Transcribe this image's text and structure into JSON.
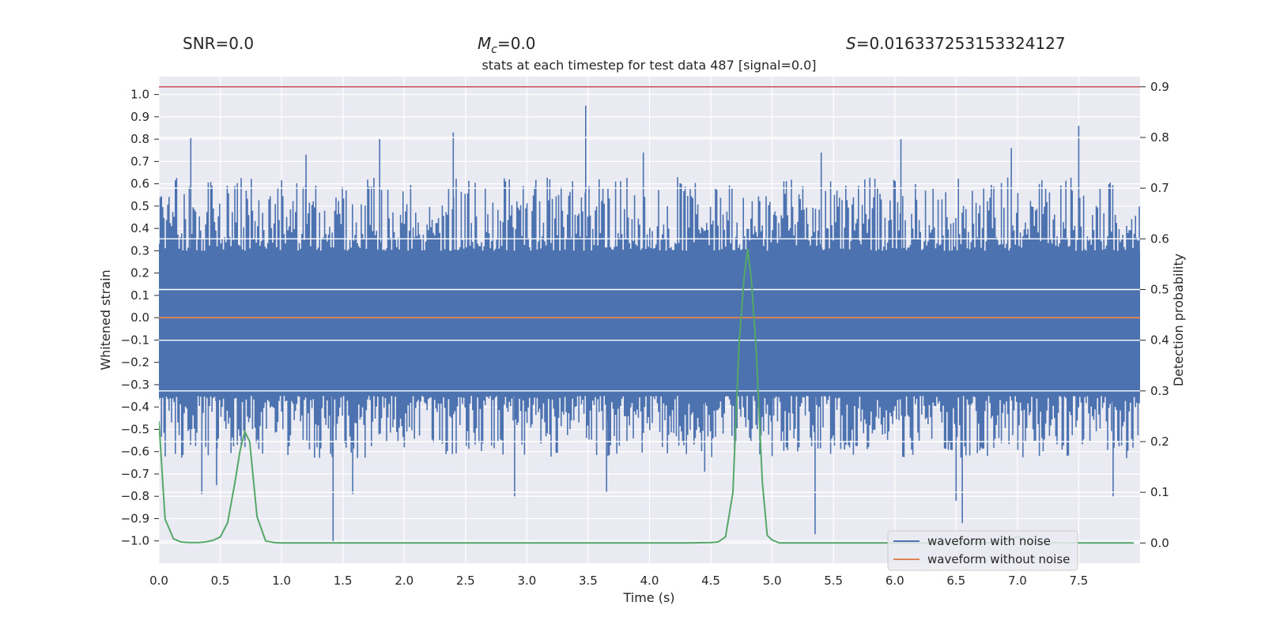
{
  "chart_data": {
    "type": "line",
    "header": {
      "snr": "SNR=0.0",
      "mc_symbol": "M",
      "mc_sub": "c",
      "mc_value": "=0.0",
      "s_symbol": "S",
      "s_value": "=0.016337253153324127"
    },
    "title": "stats at each timestep for test data 487 [signal=0.0]",
    "xlabel": "Time (s)",
    "ylabel_left": "Whitened strain",
    "ylabel_right": "Detection probability",
    "xlim": [
      0.0,
      8.0
    ],
    "ylim_left": [
      -1.1,
      1.08
    ],
    "ylim_right": [
      -0.04,
      0.92
    ],
    "x_ticks": [
      "0.0",
      "0.5",
      "1.0",
      "1.5",
      "2.0",
      "2.5",
      "3.0",
      "3.5",
      "4.0",
      "4.5",
      "5.0",
      "5.5",
      "6.0",
      "6.5",
      "7.0",
      "7.5"
    ],
    "left_ticks": [
      "1.0",
      "0.9",
      "0.8",
      "0.7",
      "0.6",
      "0.5",
      "0.4",
      "0.3",
      "0.2",
      "0.1",
      "0.0",
      "−0.1",
      "−0.2",
      "−0.3",
      "−0.4",
      "−0.5",
      "−0.6",
      "−0.7",
      "−0.8",
      "−0.9",
      "−1.0"
    ],
    "right_ticks": [
      "0.9",
      "0.8",
      "0.7",
      "0.6",
      "0.5",
      "0.4",
      "0.3",
      "0.2",
      "0.1",
      "0.0"
    ],
    "colors": {
      "plot_bg": "#eaeaf2",
      "grid": "#ffffff",
      "noise": "#4c72b0",
      "clean": "#dd8452",
      "probability": "#55a868",
      "threshold": "#c44e52"
    },
    "series": [
      {
        "name": "waveform with noise",
        "axis": "left",
        "envelope_range": [
          -0.5,
          0.5
        ],
        "spikes": [
          {
            "x": 0.26,
            "y": 0.81
          },
          {
            "x": 0.35,
            "y": -0.79
          },
          {
            "x": 0.47,
            "y": -0.75
          },
          {
            "x": 1.2,
            "y": 0.73
          },
          {
            "x": 1.4,
            "y": -0.61
          },
          {
            "x": 1.42,
            "y": -1.0
          },
          {
            "x": 1.58,
            "y": -0.79
          },
          {
            "x": 1.8,
            "y": 0.8
          },
          {
            "x": 2.4,
            "y": 0.83
          },
          {
            "x": 2.9,
            "y": -0.8
          },
          {
            "x": 3.48,
            "y": 0.95
          },
          {
            "x": 3.65,
            "y": -0.78
          },
          {
            "x": 3.95,
            "y": 0.74
          },
          {
            "x": 4.45,
            "y": -0.69
          },
          {
            "x": 5.0,
            "y": -0.62
          },
          {
            "x": 5.35,
            "y": -0.97
          },
          {
            "x": 5.4,
            "y": 0.74
          },
          {
            "x": 6.05,
            "y": 0.8
          },
          {
            "x": 6.5,
            "y": -0.82
          },
          {
            "x": 6.55,
            "y": -0.92
          },
          {
            "x": 6.95,
            "y": 0.76
          },
          {
            "x": 7.5,
            "y": 0.86
          },
          {
            "x": 7.78,
            "y": -0.8
          }
        ]
      },
      {
        "name": "waveform without noise",
        "axis": "left",
        "x": [
          0.0,
          8.0
        ],
        "y": [
          0.0,
          0.0
        ]
      },
      {
        "name": "detection probability",
        "axis": "right",
        "x": [
          0.0,
          0.05,
          0.12,
          0.18,
          0.25,
          0.32,
          0.38,
          0.44,
          0.5,
          0.56,
          0.62,
          0.66,
          0.7,
          0.74,
          0.8,
          0.87,
          0.94,
          1.0,
          1.5,
          2.0,
          2.5,
          3.0,
          3.5,
          4.0,
          4.3,
          4.5,
          4.56,
          4.62,
          4.68,
          4.73,
          4.77,
          4.8,
          4.83,
          4.87,
          4.92,
          4.96,
          5.0,
          5.06,
          5.5,
          6.0,
          6.5,
          6.9,
          7.0,
          7.1,
          7.5,
          7.95
        ],
        "y": [
          0.24,
          0.047,
          0.008,
          0.002,
          0.001,
          0.001,
          0.002,
          0.005,
          0.012,
          0.04,
          0.12,
          0.18,
          0.22,
          0.2,
          0.052,
          0.004,
          0.001,
          0.0,
          0.0,
          0.0,
          0.0,
          0.0,
          0.0,
          0.0,
          0.0,
          0.001,
          0.002,
          0.012,
          0.1,
          0.39,
          0.52,
          0.58,
          0.52,
          0.38,
          0.12,
          0.015,
          0.006,
          0.0,
          0.0,
          0.0,
          0.0,
          0.001,
          0.013,
          0.001,
          0.0,
          0.0
        ]
      },
      {
        "name": "threshold",
        "axis": "right",
        "x": [
          0.0,
          8.0
        ],
        "y": [
          0.9,
          0.9
        ]
      }
    ],
    "legend": {
      "placement": "lower-right",
      "entries": [
        "waveform with noise",
        "waveform without noise"
      ]
    }
  }
}
